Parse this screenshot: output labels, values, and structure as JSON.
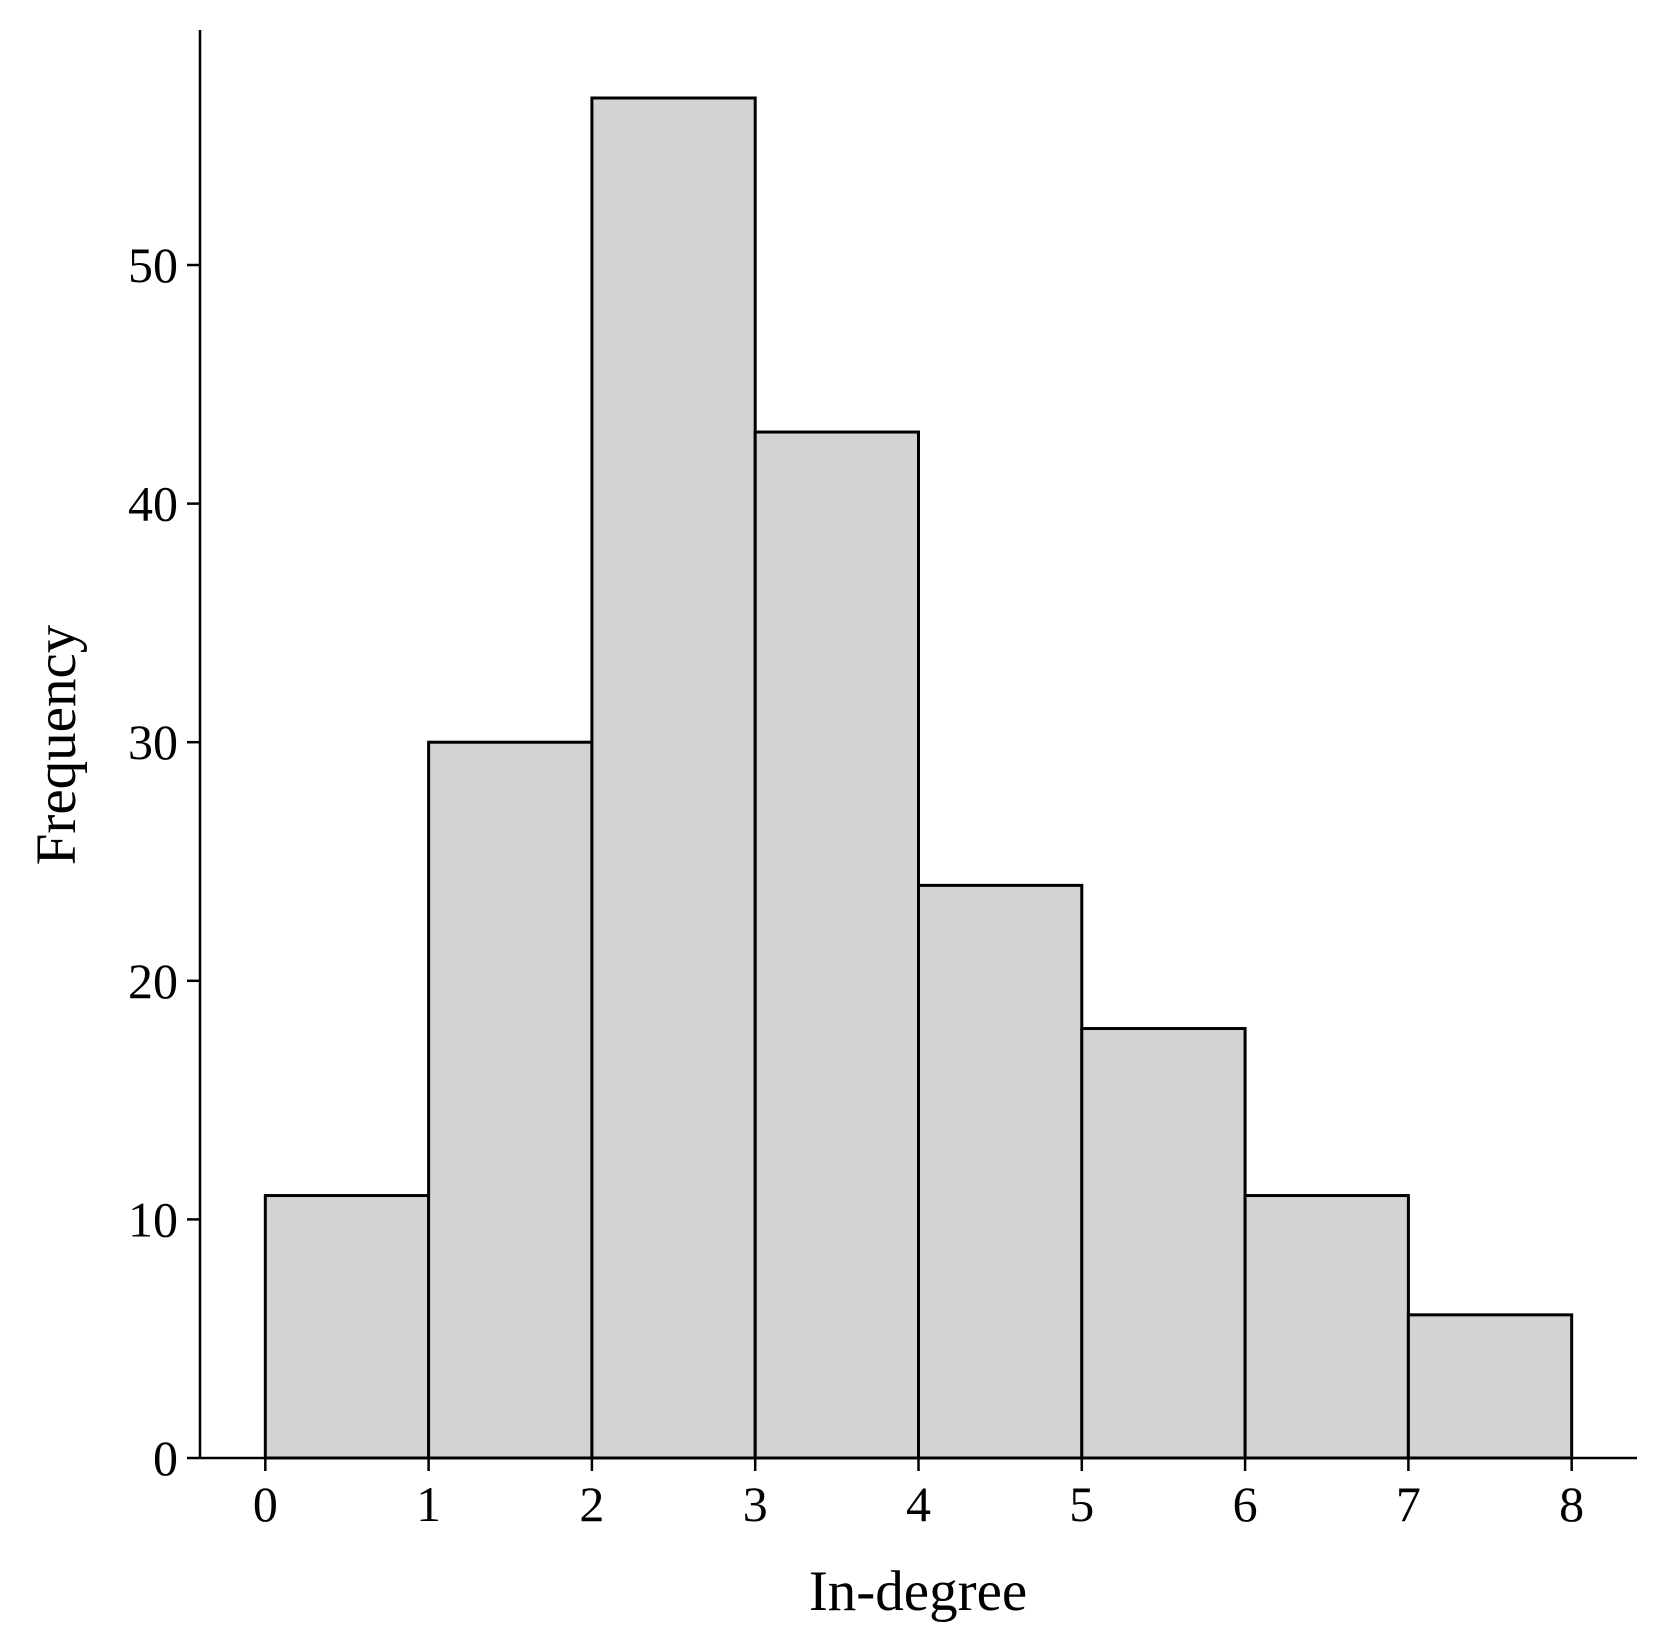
{
  "chart_data": {
    "type": "histogram",
    "xlabel": "In-degree",
    "ylabel": "Frequency",
    "bins": [
      0,
      1,
      2,
      3,
      4,
      5,
      6,
      7,
      8
    ],
    "values": [
      11,
      30,
      57,
      43,
      24,
      18,
      11,
      6
    ],
    "color": "#d3d3d3",
    "edgecolor": "#000000",
    "xlim": [
      -0.4,
      8.4
    ],
    "ylim": [
      0,
      59.85
    ],
    "xticks": [
      0,
      1,
      2,
      3,
      4,
      5,
      6,
      7,
      8
    ],
    "yticks": [
      0,
      10,
      20,
      30,
      40,
      50
    ],
    "grid": false
  }
}
